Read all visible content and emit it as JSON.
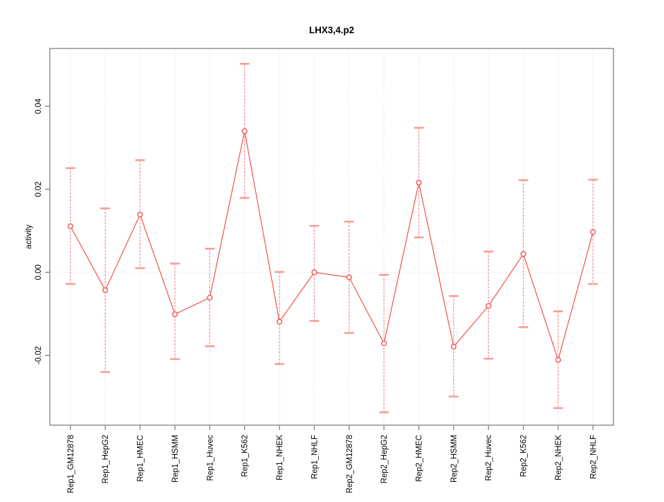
{
  "chart_data": {
    "type": "line",
    "title": "LHX3,4.p2",
    "xlabel": "",
    "ylabel": "activity",
    "categories": [
      "Rep1_GM12878",
      "Rep1_HepG2",
      "Rep1_HMEC",
      "Rep1_HSMM",
      "Rep1_Huvec",
      "Rep1_K562",
      "Rep1_NHEK",
      "Rep1_NHLF",
      "Rep2_GM12878",
      "Rep2_HepG2",
      "Rep2_HMEC",
      "Rep2_HSMM",
      "Rep2_Huvec",
      "Rep2_K562",
      "Rep2_NHEK",
      "Rep2_NHLF"
    ],
    "series": [
      {
        "name": "activity",
        "marker": "open-circle",
        "values": [
          0.0111,
          -0.0043,
          0.0139,
          -0.0101,
          -0.0061,
          0.034,
          -0.0119,
          0.0,
          -0.0012,
          -0.0171,
          0.0216,
          -0.0179,
          -0.0081,
          0.0044,
          -0.0211,
          0.0097
        ],
        "upper": [
          0.0251,
          0.0154,
          0.027,
          0.0021,
          0.0057,
          0.0502,
          0.0001,
          0.0112,
          0.0122,
          -0.0006,
          0.0348,
          -0.0057,
          0.005,
          0.0222,
          -0.0094,
          0.0223
        ],
        "lower": [
          -0.0028,
          -0.024,
          0.001,
          -0.0209,
          -0.0178,
          0.0179,
          -0.0221,
          -0.0117,
          -0.0146,
          -0.0337,
          0.0084,
          -0.0299,
          -0.0208,
          -0.0132,
          -0.0327,
          -0.0028
        ]
      }
    ],
    "error_bars": true,
    "yticks": [
      -0.02,
      0.0,
      0.02,
      0.04
    ],
    "ytick_labels": [
      "-0.02",
      "0.00",
      "0.02",
      "0.04"
    ],
    "ylim": [
      -0.0368,
      0.0539
    ],
    "grid": {
      "vertical_category_lines": "dotted",
      "zero_line": "dotted",
      "horizontal_tick_lines": false
    },
    "legend": {
      "visible": false
    },
    "colors": {
      "series_line": "#f0514f",
      "error_bar": "#f79a9a",
      "marker_stroke": "#f0514f",
      "marker_fill": "#ffffff",
      "axis": "#888888",
      "grid": "#d9d9d9",
      "text": "#000000"
    }
  }
}
